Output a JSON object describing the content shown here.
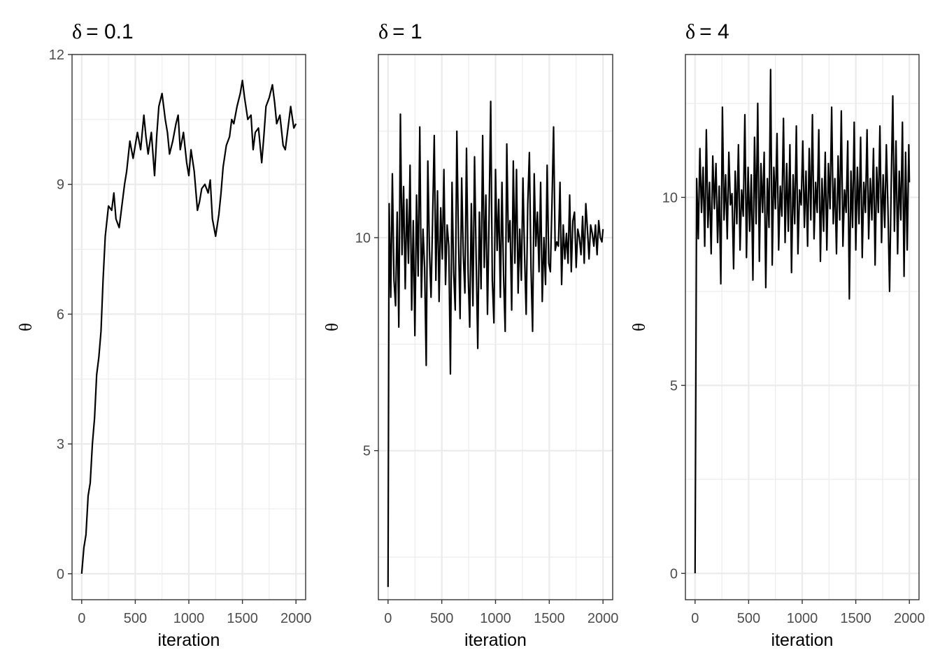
{
  "chart_data": [
    {
      "type": "line",
      "title_symbol": "δ",
      "title_value": "= 0.1",
      "xlabel": "iteration",
      "ylabel": "θ",
      "xlim": [
        -90,
        2090
      ],
      "ylim": [
        -0.6,
        12
      ],
      "xticks": [
        0,
        500,
        1000,
        1500,
        2000
      ],
      "xtick_labels": [
        "0",
        "500",
        "1000",
        "1500",
        "2000"
      ],
      "yticks": [
        0,
        3,
        6,
        9,
        12
      ],
      "ytick_labels": [
        "0",
        "3",
        "6",
        "9",
        "12"
      ],
      "grid": true,
      "series": [
        {
          "x": [
            0,
            20,
            40,
            60,
            80,
            100,
            120,
            140,
            160,
            180,
            200,
            220,
            250,
            280,
            300,
            320,
            350,
            380,
            400,
            420,
            450,
            480,
            500,
            520,
            550,
            580,
            600,
            620,
            650,
            680,
            700,
            720,
            750,
            780,
            800,
            820,
            850,
            880,
            900,
            920,
            950,
            980,
            1000,
            1020,
            1050,
            1080,
            1100,
            1120,
            1150,
            1180,
            1200,
            1220,
            1250,
            1280,
            1300,
            1320,
            1350,
            1380,
            1400,
            1420,
            1450,
            1480,
            1500,
            1520,
            1550,
            1580,
            1600,
            1620,
            1650,
            1680,
            1700,
            1720,
            1750,
            1780,
            1800,
            1820,
            1850,
            1880,
            1900,
            1920,
            1950,
            1980,
            2000
          ],
          "y": [
            0,
            0.6,
            0.9,
            1.8,
            2.1,
            3.0,
            3.6,
            4.6,
            5.0,
            5.6,
            6.8,
            7.8,
            8.5,
            8.4,
            8.8,
            8.2,
            8.0,
            8.6,
            9.0,
            9.3,
            10.0,
            9.6,
            9.9,
            10.2,
            9.8,
            10.6,
            10.1,
            9.7,
            10.2,
            9.2,
            10.1,
            10.8,
            11.1,
            10.5,
            10.2,
            9.7,
            10.0,
            10.4,
            10.6,
            9.8,
            10.2,
            9.5,
            9.2,
            9.8,
            9.3,
            8.4,
            8.6,
            8.9,
            9.0,
            8.8,
            9.1,
            8.2,
            7.8,
            8.3,
            8.8,
            9.4,
            9.9,
            10.1,
            10.5,
            10.4,
            10.8,
            11.1,
            11.4,
            11.0,
            10.5,
            10.6,
            9.8,
            10.2,
            10.3,
            9.5,
            10.1,
            10.8,
            11.0,
            11.3,
            10.9,
            10.4,
            10.6,
            9.9,
            9.8,
            10.2,
            10.8,
            10.3,
            10.4
          ]
        }
      ]
    },
    {
      "type": "line",
      "title_symbol": "δ",
      "title_value": "= 1",
      "xlabel": "iteration",
      "ylabel": "θ",
      "xlim": [
        -90,
        2090
      ],
      "ylim": [
        1.5,
        14.3
      ],
      "xticks": [
        0,
        500,
        1000,
        1500,
        2000
      ],
      "xtick_labels": [
        "0",
        "500",
        "1000",
        "1500",
        "2000"
      ],
      "yticks": [
        5,
        10
      ],
      "ytick_labels": [
        "5",
        "10"
      ],
      "grid": true,
      "series": [
        {
          "x": [
            0,
            10,
            25,
            40,
            55,
            70,
            85,
            100,
            115,
            130,
            145,
            160,
            175,
            190,
            205,
            220,
            235,
            250,
            265,
            280,
            295,
            310,
            325,
            340,
            355,
            370,
            385,
            400,
            415,
            430,
            445,
            460,
            475,
            490,
            505,
            520,
            535,
            550,
            565,
            580,
            595,
            610,
            625,
            640,
            655,
            670,
            685,
            700,
            715,
            730,
            745,
            760,
            775,
            790,
            805,
            820,
            835,
            850,
            865,
            880,
            895,
            910,
            925,
            940,
            955,
            970,
            985,
            1000,
            1015,
            1030,
            1045,
            1060,
            1075,
            1090,
            1105,
            1120,
            1135,
            1150,
            1165,
            1180,
            1195,
            1210,
            1225,
            1240,
            1255,
            1270,
            1285,
            1300,
            1315,
            1330,
            1345,
            1360,
            1375,
            1390,
            1405,
            1420,
            1435,
            1450,
            1465,
            1480,
            1495,
            1510,
            1525,
            1540,
            1555,
            1570,
            1585,
            1600,
            1615,
            1630,
            1645,
            1660,
            1675,
            1690,
            1705,
            1720,
            1735,
            1750,
            1765,
            1780,
            1795,
            1810,
            1825,
            1840,
            1855,
            1870,
            1885,
            1900,
            1915,
            1930,
            1945,
            1960,
            1975,
            1990,
            2000
          ],
          "y": [
            1.8,
            10.8,
            8.6,
            11.5,
            9.0,
            8.4,
            10.6,
            7.9,
            12.9,
            9.6,
            11.2,
            8.8,
            10.9,
            9.4,
            11.7,
            8.3,
            10.4,
            7.7,
            11.0,
            9.1,
            12.6,
            8.6,
            10.2,
            9.3,
            7.0,
            11.8,
            9.7,
            8.6,
            10.5,
            12.4,
            9.0,
            11.1,
            8.5,
            10.7,
            9.5,
            11.6,
            8.9,
            10.3,
            9.8,
            6.8,
            11.3,
            9.2,
            8.3,
            12.5,
            10.0,
            8.1,
            11.4,
            9.6,
            8.7,
            12.1,
            9.2,
            7.9,
            10.8,
            8.4,
            11.9,
            9.5,
            7.4,
            10.6,
            8.8,
            12.4,
            9.3,
            11.0,
            8.2,
            10.5,
            13.2,
            9.0,
            8.0,
            11.6,
            9.7,
            10.9,
            8.6,
            11.3,
            9.1,
            7.8,
            12.2,
            9.9,
            10.4,
            8.3,
            11.8,
            9.4,
            11.6,
            8.7,
            10.2,
            9.0,
            11.4,
            9.6,
            8.2,
            10.8,
            12.0,
            9.3,
            7.8,
            11.5,
            9.8,
            10.6,
            9.2,
            11.3,
            8.5,
            10.0,
            8.9,
            11.7,
            9.4,
            9.2,
            10.8,
            12.6,
            9.7,
            9.9,
            9.8,
            11.3,
            8.9,
            10.3,
            9.5,
            10.1,
            9.4,
            11.0,
            9.2,
            10.4,
            10.6,
            9.3,
            10.2,
            10.0,
            9.6,
            10.5,
            9.4,
            10.8,
            10.2,
            9.5,
            10.3,
            10.1,
            9.8,
            10.3,
            9.6,
            10.4,
            10.0,
            9.9,
            10.2
          ]
        }
      ]
    },
    {
      "type": "line",
      "title_symbol": "δ",
      "title_value": "= 4",
      "xlabel": "iteration",
      "ylabel": "θ",
      "xlim": [
        -90,
        2090
      ],
      "ylim": [
        -0.7,
        13.8
      ],
      "xticks": [
        0,
        500,
        1000,
        1500,
        2000
      ],
      "xtick_labels": [
        "0",
        "500",
        "1000",
        "1500",
        "2000"
      ],
      "yticks": [
        0,
        5,
        10
      ],
      "ytick_labels": [
        "0",
        "5",
        "10"
      ],
      "grid": true,
      "series": [
        {
          "x": [
            0,
            15,
            30,
            45,
            60,
            75,
            90,
            105,
            120,
            135,
            150,
            165,
            180,
            195,
            210,
            225,
            240,
            255,
            270,
            285,
            300,
            315,
            330,
            345,
            360,
            375,
            390,
            405,
            420,
            435,
            450,
            465,
            480,
            495,
            510,
            525,
            540,
            555,
            570,
            585,
            600,
            615,
            630,
            645,
            660,
            675,
            690,
            705,
            720,
            735,
            750,
            765,
            780,
            795,
            810,
            825,
            840,
            855,
            870,
            885,
            900,
            915,
            930,
            945,
            960,
            975,
            990,
            1005,
            1020,
            1035,
            1050,
            1065,
            1080,
            1095,
            1110,
            1125,
            1140,
            1155,
            1170,
            1185,
            1200,
            1215,
            1230,
            1245,
            1260,
            1275,
            1290,
            1305,
            1320,
            1335,
            1350,
            1365,
            1380,
            1395,
            1410,
            1425,
            1440,
            1455,
            1470,
            1485,
            1500,
            1515,
            1530,
            1545,
            1560,
            1575,
            1590,
            1605,
            1620,
            1635,
            1650,
            1665,
            1680,
            1695,
            1710,
            1725,
            1740,
            1755,
            1770,
            1785,
            1800,
            1815,
            1830,
            1845,
            1860,
            1875,
            1890,
            1905,
            1920,
            1935,
            1950,
            1965,
            1980,
            1995,
            2000
          ],
          "y": [
            0,
            10.5,
            8.9,
            11.3,
            9.6,
            10.8,
            8.7,
            11.8,
            9.2,
            10.4,
            8.5,
            11.1,
            9.7,
            10.9,
            8.8,
            10.3,
            7.7,
            12.4,
            9.4,
            10.6,
            8.9,
            11.2,
            9.8,
            10.1,
            8.1,
            10.7,
            9.3,
            11.4,
            8.6,
            10.2,
            9.5,
            12.2,
            8.4,
            10.8,
            9.1,
            10.6,
            7.8,
            11.6,
            9.3,
            12.5,
            8.3,
            10.9,
            9.6,
            11.2,
            7.6,
            10.5,
            9.2,
            13.4,
            8.2,
            10.8,
            9.7,
            11.7,
            8.6,
            10.3,
            9.5,
            12.1,
            8.8,
            10.9,
            9.1,
            11.4,
            8.0,
            10.6,
            9.3,
            11.9,
            8.5,
            10.2,
            9.8,
            11.5,
            9.2,
            10.7,
            8.7,
            11.3,
            9.4,
            12.2,
            8.9,
            10.4,
            9.6,
            11.8,
            8.3,
            10.5,
            9.1,
            11.2,
            8.6,
            10.9,
            9.7,
            12.4,
            9.3,
            10.5,
            8.5,
            11.1,
            9.4,
            12.3,
            8.7,
            10.2,
            9.6,
            11.5,
            7.3,
            10.7,
            9.2,
            12.0,
            8.6,
            10.8,
            9.3,
            11.6,
            8.4,
            10.4,
            9.6,
            11.8,
            8.9,
            10.5,
            9.4,
            11.3,
            8.2,
            10.8,
            9.6,
            11.9,
            8.8,
            10.6,
            9.2,
            11.4,
            9.7,
            7.5,
            10.3,
            12.7,
            9.1,
            11.5,
            8.5,
            10.7,
            9.4,
            12.0,
            7.9,
            11.2,
            8.6,
            11.4,
            10.4
          ]
        }
      ]
    }
  ]
}
